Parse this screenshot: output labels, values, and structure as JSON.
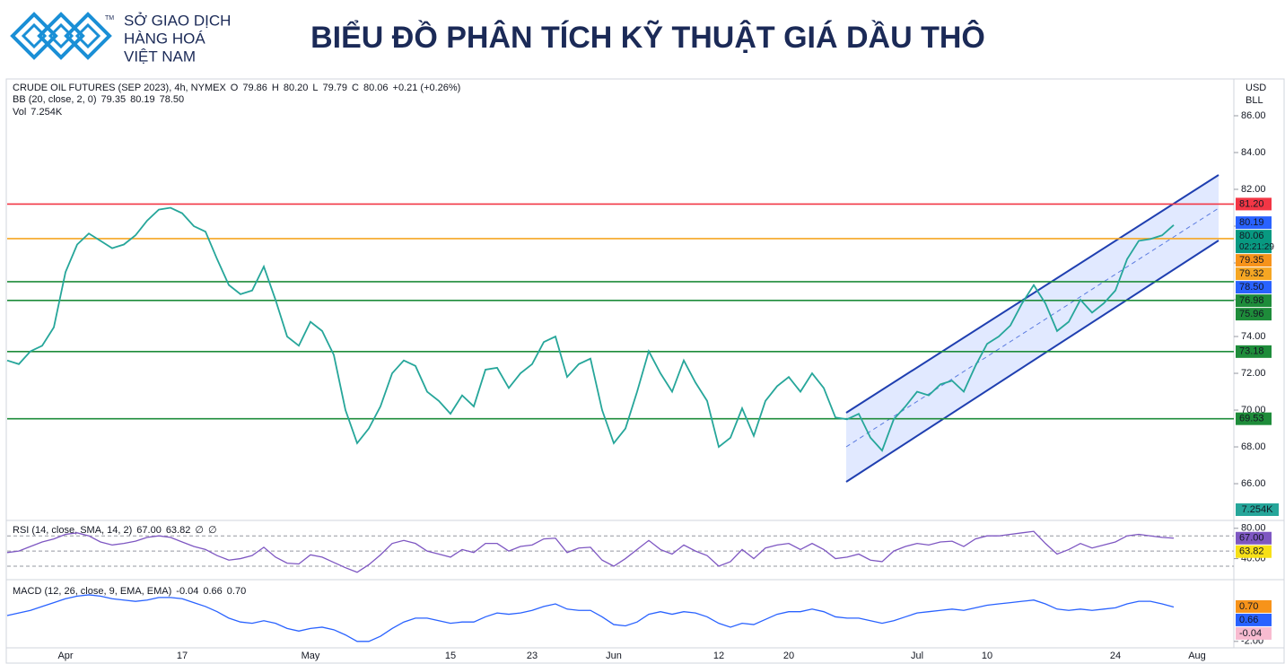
{
  "header": {
    "logo_lines": [
      "SỞ GIAO DỊCH",
      "HÀNG HOÁ",
      "VIỆT NAM"
    ],
    "logo_mark": "TM",
    "title": "BIỂU ĐỒ PHÂN TÍCH KỸ THUẬT GIÁ DẦU THÔ"
  },
  "legend": {
    "symbol": "CRUDE OIL FUTURES (SEP 2023), 4h, NYMEX",
    "ohlc_labels": [
      "O",
      "H",
      "L",
      "C"
    ],
    "ohlc_values": [
      "79.86",
      "80.20",
      "79.79",
      "80.06"
    ],
    "change": "+0.21 (+0.26%)",
    "bb_name": "BB (20, close, 2, 0)",
    "bb_values": [
      "79.35",
      "80.19",
      "78.50"
    ],
    "vol_name": "Vol",
    "vol_value": "7.254K"
  },
  "currency": "USD",
  "unit_label": "BLL",
  "chart_data": [
    {
      "type": "line",
      "color": "#26a69a",
      "categories": [
        null,
        null,
        null,
        null,
        null,
        "Apr",
        null,
        null,
        null,
        null,
        null,
        null,
        null,
        null,
        null,
        "17",
        null,
        null,
        null,
        null,
        null,
        null,
        null,
        null,
        null,
        null,
        "May",
        null,
        null,
        null,
        null,
        null,
        null,
        null,
        null,
        null,
        null,
        null,
        "15",
        null,
        null,
        null,
        null,
        null,
        null,
        "23",
        null,
        null,
        null,
        null,
        null,
        null,
        "Jun",
        null,
        null,
        null,
        null,
        null,
        null,
        null,
        null,
        "12",
        null,
        null,
        null,
        null,
        null,
        "20",
        null,
        null,
        null,
        null,
        null,
        null,
        null,
        null,
        null,
        null,
        "Jul",
        null,
        null,
        null,
        null,
        null,
        "10",
        null,
        null,
        null,
        null,
        null,
        null,
        null,
        null,
        null,
        null,
        "24",
        null,
        null,
        null,
        null,
        null,
        null,
        "Aug"
      ],
      "values": [
        72.7,
        72.5,
        73.2,
        73.5,
        74.5,
        77.5,
        79,
        79.6,
        79.2,
        78.8,
        79,
        79.5,
        80.3,
        80.9,
        81,
        80.7,
        80,
        79.7,
        78.2,
        76.8,
        76.3,
        76.5,
        77.8,
        76,
        74,
        73.5,
        74.8,
        74.3,
        73,
        70,
        68.2,
        69,
        70.2,
        72,
        72.7,
        72.4,
        71,
        70.5,
        69.8,
        70.8,
        70.2,
        72.2,
        72.3,
        71.2,
        72,
        72.5,
        73.7,
        74,
        71.8,
        72.5,
        72.8,
        70,
        68.2,
        69,
        71,
        73.2,
        72,
        71,
        72.7,
        71.5,
        70.5,
        68,
        68.5,
        70.1,
        68.6,
        70.5,
        71.3,
        71.8,
        71,
        72,
        71.2,
        69.6,
        69.5,
        69.8,
        68.5,
        67.8,
        69.5,
        70.2,
        71,
        70.8,
        71.4,
        71.6,
        71,
        72.4,
        73.6,
        74,
        74.6,
        75.8,
        76.8,
        75.8,
        74.3,
        74.8,
        76,
        75.3,
        75.8,
        76.5,
        78.2,
        79.2,
        79.3,
        79.5,
        80.06,
        null,
        null
      ],
      "ylim": [
        64.1,
        88
      ],
      "yticks": [
        {
          "value": 66,
          "label": "66.00"
        },
        {
          "value": 68,
          "label": "68.00"
        },
        {
          "value": 70,
          "label": "70.00"
        },
        {
          "value": 72,
          "label": "72.00"
        },
        {
          "value": 74,
          "label": "74.00"
        },
        {
          "value": 76,
          "label": "76.00"
        },
        {
          "value": 78,
          "label": "78.00"
        },
        {
          "value": 80,
          "label": "80.00"
        },
        {
          "value": 82,
          "label": "82.00"
        },
        {
          "value": 84,
          "label": "84.00"
        },
        {
          "value": 86,
          "label": "86.00"
        }
      ],
      "levels": [
        {
          "value": 81.2,
          "label": "81.20",
          "color": "#f23645"
        },
        {
          "value": 79.32,
          "label": "79.32",
          "color": "#f5a623"
        },
        {
          "value": 76.98,
          "label": "76.98",
          "color": "#1e8c3a"
        },
        {
          "value": 75.96,
          "label": "75.96",
          "color": "#1e8c3a"
        },
        {
          "value": 73.18,
          "label": "73.18",
          "color": "#1e8c3a"
        },
        {
          "value": 69.53,
          "label": "69.53",
          "color": "#1e8c3a"
        }
      ],
      "price_labels": [
        {
          "value": 80.19,
          "label": "80.19",
          "color": "#2962ff"
        },
        {
          "value": 80.06,
          "label": "80.06",
          "color": "#089981",
          "time": "02:21:29"
        },
        {
          "value": 79.35,
          "label": "79.35",
          "color": "#f7931a"
        },
        {
          "value": 78.5,
          "label": "78.50",
          "color": "#2962ff"
        }
      ],
      "volume_label": "7.254K"
    },
    {
      "type": "line",
      "title": "RSI (14, close, SMA, 14, 2)",
      "legend_values": [
        "67.00",
        "63.82",
        "∅",
        "∅"
      ],
      "color": "#7e57c2",
      "values": [
        48,
        50,
        56,
        62,
        66,
        72,
        74,
        70,
        62,
        58,
        60,
        63,
        68,
        70,
        68,
        62,
        56,
        52,
        44,
        38,
        40,
        44,
        55,
        42,
        34,
        33,
        45,
        42,
        35,
        28,
        22,
        32,
        45,
        60,
        64,
        60,
        50,
        46,
        42,
        52,
        48,
        60,
        60,
        50,
        56,
        58,
        66,
        67,
        48,
        54,
        55,
        38,
        30,
        40,
        52,
        64,
        52,
        46,
        58,
        50,
        44,
        30,
        36,
        52,
        40,
        54,
        58,
        60,
        52,
        60,
        52,
        40,
        42,
        46,
        38,
        36,
        50,
        56,
        60,
        58,
        62,
        63,
        56,
        66,
        70,
        70,
        72,
        74,
        76,
        60,
        46,
        52,
        60,
        54,
        58,
        62,
        70,
        72,
        70,
        68,
        67,
        null,
        null
      ],
      "ylim": [
        17,
        88
      ],
      "yticks": [
        {
          "value": 80,
          "label": "80.00"
        },
        {
          "value": 40,
          "label": "40.00"
        }
      ],
      "bands": [
        70,
        50,
        30
      ],
      "price_labels": [
        {
          "value": 67,
          "label": "67.00",
          "color": "#7e57c2"
        },
        {
          "value": 63.82,
          "label": "63.82",
          "color": "#f7e017"
        }
      ]
    },
    {
      "type": "line",
      "title": "MACD (12, 26, close, 9, EMA, EMA)",
      "legend_values": [
        "-0.04",
        "0.66",
        "0.70"
      ],
      "color": "#2962ff",
      "values": [
        0,
        0.2,
        0.4,
        0.7,
        1,
        1.3,
        1.5,
        1.6,
        1.5,
        1.3,
        1.2,
        1.1,
        1.2,
        1.4,
        1.4,
        1.3,
        1,
        0.7,
        0.3,
        -0.2,
        -0.5,
        -0.6,
        -0.4,
        -0.6,
        -1,
        -1.2,
        -1,
        -0.9,
        -1.1,
        -1.5,
        -2,
        -2,
        -1.6,
        -1,
        -0.5,
        -0.2,
        -0.2,
        -0.4,
        -0.6,
        -0.5,
        -0.5,
        -0.1,
        0.2,
        0.1,
        0.2,
        0.4,
        0.7,
        0.9,
        0.5,
        0.4,
        0.4,
        -0.1,
        -0.7,
        -0.8,
        -0.5,
        0.1,
        0.3,
        0.1,
        0.3,
        0.2,
        -0.1,
        -0.6,
        -0.9,
        -0.6,
        -0.7,
        -0.3,
        0.1,
        0.3,
        0.3,
        0.5,
        0.3,
        -0.1,
        -0.2,
        -0.2,
        -0.4,
        -0.6,
        -0.4,
        -0.1,
        0.2,
        0.3,
        0.4,
        0.5,
        0.4,
        0.6,
        0.8,
        0.9,
        1,
        1.1,
        1.2,
        0.9,
        0.5,
        0.4,
        0.5,
        0.4,
        0.5,
        0.6,
        0.9,
        1.1,
        1.1,
        0.9,
        0.66,
        null,
        null
      ],
      "ylim": [
        -2.5,
        2.5
      ],
      "yticks": [
        {
          "value": -2,
          "label": "-2.00"
        }
      ],
      "price_labels": [
        {
          "value": 0.7,
          "label": "0.70",
          "color": "#f7931a"
        },
        {
          "value": 0.66,
          "label": "0.66",
          "color": "#2962ff"
        },
        {
          "value": -0.04,
          "label": "-0.04",
          "color": "#f8bbd0",
          "text": "#c2185b"
        }
      ]
    }
  ]
}
